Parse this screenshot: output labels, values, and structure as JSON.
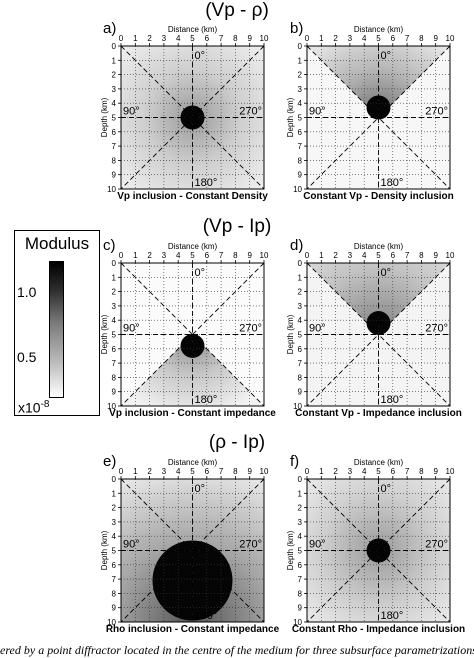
{
  "row_titles": [
    "(Vp - ρ)",
    "(Vp - Ip)",
    "(ρ - Ip)"
  ],
  "axis": {
    "xlabel": "Distance (km)",
    "ylabel": "Depth (km)",
    "xticks": [
      "0",
      "1",
      "2",
      "3",
      "4",
      "5",
      "6",
      "7",
      "8",
      "9",
      "10"
    ],
    "yticks": [
      "0",
      "1",
      "2",
      "3",
      "4",
      "5",
      "6",
      "7",
      "8",
      "9",
      "10"
    ],
    "angles": {
      "top": "0°",
      "left": "90°",
      "right": "270°",
      "bottom": "180°"
    }
  },
  "panels": [
    {
      "letter": "a)",
      "caption": "Vp inclusion - Constant Density",
      "pattern": "a"
    },
    {
      "letter": "b)",
      "caption": "Constant Vp - Density inclusion",
      "pattern": "b"
    },
    {
      "letter": "c)",
      "caption": "Vp inclusion - Constant impedance",
      "pattern": "c"
    },
    {
      "letter": "d)",
      "caption": "Constant Vp - Impedance inclusion",
      "pattern": "d"
    },
    {
      "letter": "e)",
      "caption": "Rho inclusion - Constant impedance",
      "pattern": "e"
    },
    {
      "letter": "f)",
      "caption": "Constant Rho - Impedance inclusion",
      "pattern": "f"
    }
  ],
  "colorbar": {
    "title": "Modulus",
    "tick_high": "1.0",
    "tick_low": "0.5",
    "scale_base": "x10",
    "scale_exp": "-8",
    "colors": [
      "#ffffff",
      "#000000"
    ]
  },
  "caption_fragment": "ered by a point diffractor located in the centre of the medium for three subsurface parametrizations: (V"
}
